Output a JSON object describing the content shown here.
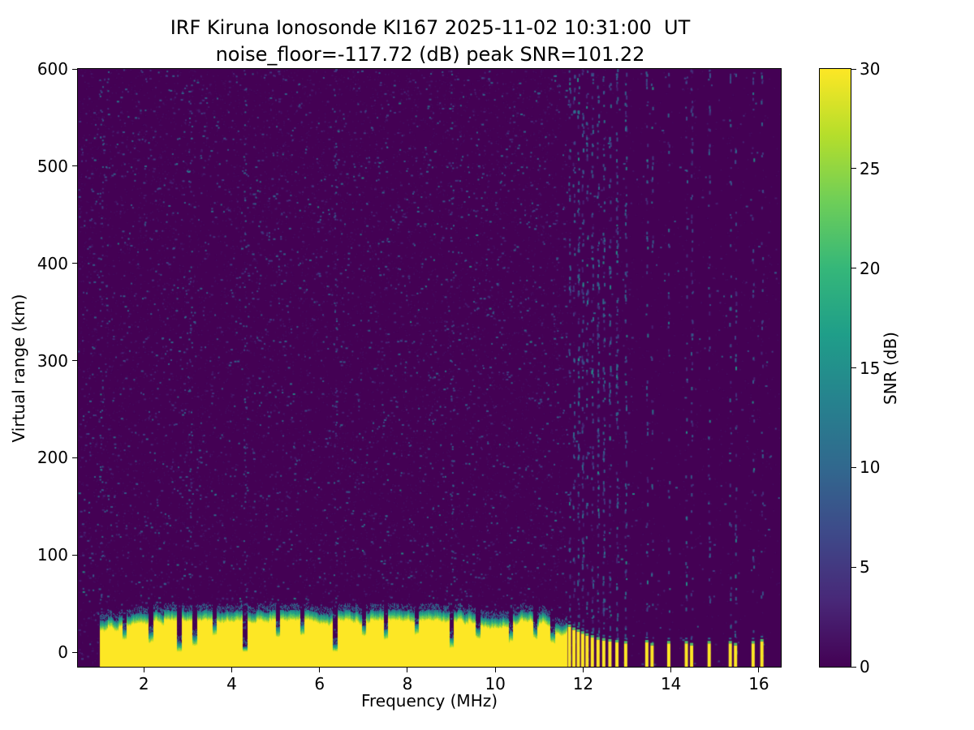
{
  "chart_data": {
    "type": "heatmap",
    "title": "IRF Kiruna Ionosonde KI167 2025-11-02 10:31:00  UT",
    "subtitle": "noise_floor=-117.72 (dB) peak SNR=101.22",
    "xlabel": "Frequency (MHz)",
    "ylabel": "Virtual range (km)",
    "x_range": [
      0.5,
      16.5
    ],
    "y_range": [
      -15,
      600
    ],
    "x_ticks": [
      2,
      4,
      6,
      8,
      10,
      12,
      14,
      16
    ],
    "y_ticks": [
      0,
      100,
      200,
      300,
      400,
      500,
      600
    ],
    "grid": false,
    "noise_floor_db": -117.72,
    "peak_snr_db": 101.22,
    "colorbar": {
      "label": "SNR (dB)",
      "ticks": [
        0,
        5,
        10,
        15,
        20,
        25,
        30
      ],
      "range": [
        0,
        30
      ],
      "colormap": "viridis",
      "stops": [
        "#440154",
        "#482878",
        "#3e4989",
        "#31688e",
        "#26828e",
        "#1f9e89",
        "#35b779",
        "#6ece58",
        "#b5de2b",
        "#fde725"
      ]
    },
    "background_snr_db": 0,
    "background_speckle": {
      "snr_db_range": [
        2,
        13
      ],
      "count": 5200,
      "fine_grain_count": 14000,
      "clean_region_start_mhz": 11.62,
      "denser_columns_mhz": [
        1.02,
        3.05,
        4.3,
        6.35,
        9.0
      ]
    },
    "ground_echo_band": {
      "freq_start_mhz": 1.0,
      "freq_end_mhz": 11.62,
      "top_km_mean": 32,
      "top_km_min": 24,
      "top_km_max": 44,
      "yellow_snr_db": 30,
      "notches": [
        {
          "f": 1.55,
          "depth": 0.45
        },
        {
          "f": 2.15,
          "depth": 0.55
        },
        {
          "f": 2.8,
          "depth": 0.8
        },
        {
          "f": 3.15,
          "depth": 0.65
        },
        {
          "f": 3.6,
          "depth": 0.4
        },
        {
          "f": 4.3,
          "depth": 0.9
        },
        {
          "f": 5.05,
          "depth": 0.45
        },
        {
          "f": 5.6,
          "depth": 0.4
        },
        {
          "f": 6.35,
          "depth": 0.85
        },
        {
          "f": 7.0,
          "depth": 0.4
        },
        {
          "f": 7.5,
          "depth": 0.5
        },
        {
          "f": 8.2,
          "depth": 0.35
        },
        {
          "f": 9.0,
          "depth": 0.7
        },
        {
          "f": 9.6,
          "depth": 0.4
        },
        {
          "f": 10.35,
          "depth": 0.5
        },
        {
          "f": 10.9,
          "depth": 0.4
        },
        {
          "f": 11.3,
          "depth": 0.45
        }
      ]
    },
    "interference_stripes_mhz": [
      11.68,
      11.78,
      11.88,
      11.98,
      12.08,
      12.2,
      12.33,
      12.46,
      12.6,
      12.76,
      12.96,
      13.44,
      13.56,
      13.94,
      14.34,
      14.46,
      14.86,
      15.34,
      15.46,
      15.86,
      16.06
    ],
    "stripe_bottom_bars": [
      {
        "f": 11.68,
        "h": 26
      },
      {
        "f": 11.78,
        "h": 23
      },
      {
        "f": 11.88,
        "h": 21
      },
      {
        "f": 11.98,
        "h": 19
      },
      {
        "f": 12.08,
        "h": 17
      },
      {
        "f": 12.2,
        "h": 15
      },
      {
        "f": 12.33,
        "h": 13
      },
      {
        "f": 12.46,
        "h": 12
      },
      {
        "f": 12.6,
        "h": 11
      },
      {
        "f": 12.76,
        "h": 10
      },
      {
        "f": 12.96,
        "h": 9
      },
      {
        "f": 13.44,
        "h": 10
      },
      {
        "f": 13.56,
        "h": 7
      },
      {
        "f": 13.94,
        "h": 9
      },
      {
        "f": 14.34,
        "h": 9
      },
      {
        "f": 14.46,
        "h": 7
      },
      {
        "f": 14.86,
        "h": 9
      },
      {
        "f": 15.34,
        "h": 9
      },
      {
        "f": 15.46,
        "h": 7
      },
      {
        "f": 15.86,
        "h": 9
      },
      {
        "f": 16.06,
        "h": 11
      }
    ]
  }
}
